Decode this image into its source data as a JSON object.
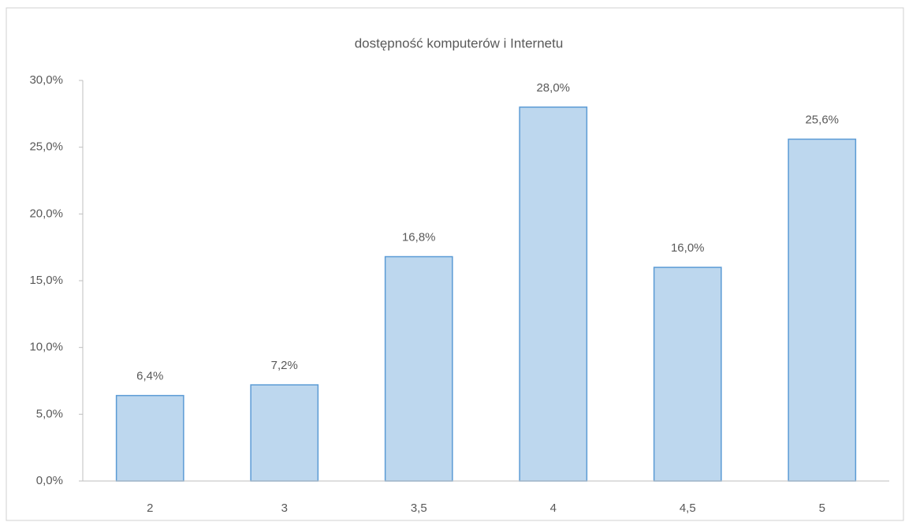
{
  "chart_data": {
    "type": "bar",
    "title": "dostępność komputerów i Internetu",
    "categories": [
      "2",
      "3",
      "3,5",
      "4",
      "4,5",
      "5"
    ],
    "values": [
      6.4,
      7.2,
      16.8,
      28.0,
      16.0,
      25.6
    ],
    "value_labels": [
      "6,4%",
      "7,2%",
      "16,8%",
      "28,0%",
      "16,0%",
      "25,6%"
    ],
    "color": "#bdd7ee",
    "edge_color": "#5b9bd5",
    "ylim": [
      0,
      30
    ],
    "yticks": [
      {
        "value": 0,
        "label": "0,0%"
      },
      {
        "value": 5,
        "label": "5,0%"
      },
      {
        "value": 10,
        "label": "10,0%"
      },
      {
        "value": 15,
        "label": "15,0%"
      },
      {
        "value": 20,
        "label": "20,0%"
      },
      {
        "value": 25,
        "label": "25,0%"
      },
      {
        "value": 30,
        "label": "30,0%"
      }
    ],
    "grid": false
  }
}
